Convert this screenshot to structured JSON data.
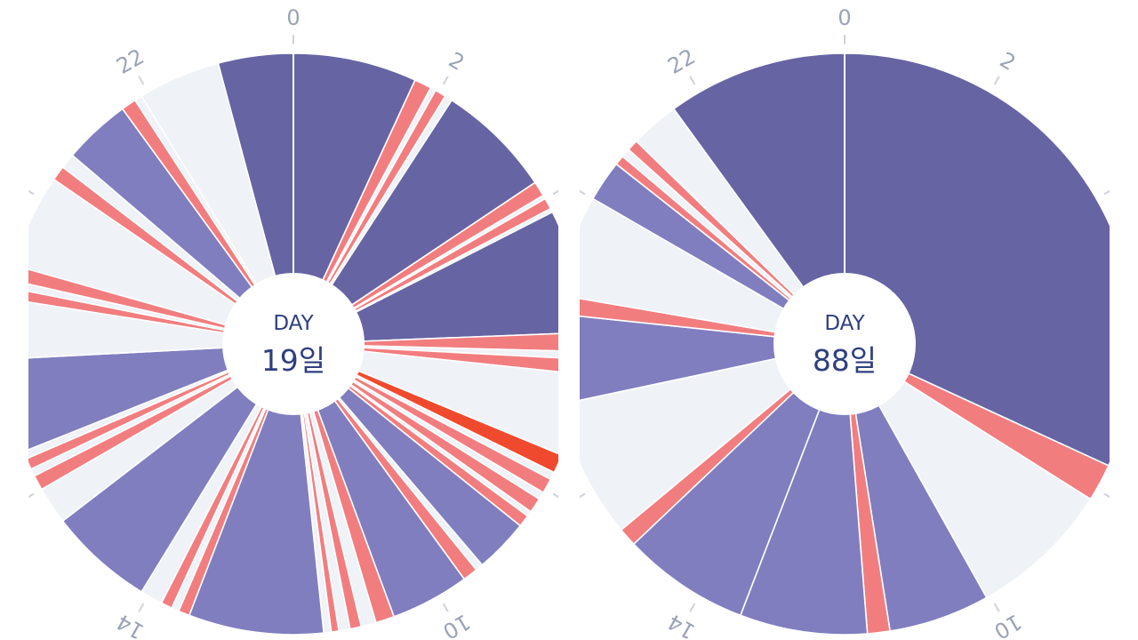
{
  "colors": {
    "sleep": "#6764a4",
    "nap": "#807ebf",
    "feed": "#f27d7f",
    "alert": "#f04a2e",
    "awake": "#eff2f6",
    "divider": "#ffffff",
    "tick": "#cdd2dc",
    "tick_label": "#9aa3b6",
    "center_text": "#2f3f7f"
  },
  "chart_data": [
    {
      "type": "radial-timeline",
      "center": {
        "title": "DAY",
        "value": "19일"
      },
      "hour_ticks": [
        "0",
        "2",
        "",
        "",
        "",
        "10",
        "",
        "14",
        "",
        "",
        "",
        "22"
      ],
      "segments": [
        {
          "start": 0.0,
          "end": 1.65,
          "category": "sleep"
        },
        {
          "start": 1.65,
          "end": 1.88,
          "category": "feed"
        },
        {
          "start": 1.88,
          "end": 1.95,
          "category": "awake"
        },
        {
          "start": 1.95,
          "end": 2.1,
          "category": "feed"
        },
        {
          "start": 2.1,
          "end": 2.2,
          "category": "awake"
        },
        {
          "start": 2.2,
          "end": 3.75,
          "category": "sleep"
        },
        {
          "start": 3.75,
          "end": 3.95,
          "category": "feed"
        },
        {
          "start": 3.95,
          "end": 4.0,
          "category": "awake"
        },
        {
          "start": 4.0,
          "end": 4.15,
          "category": "feed"
        },
        {
          "start": 4.15,
          "end": 4.2,
          "category": "awake"
        },
        {
          "start": 4.2,
          "end": 5.85,
          "category": "sleep"
        },
        {
          "start": 5.85,
          "end": 6.1,
          "category": "feed"
        },
        {
          "start": 6.1,
          "end": 6.2,
          "category": "awake"
        },
        {
          "start": 6.2,
          "end": 6.4,
          "category": "feed"
        },
        {
          "start": 6.4,
          "end": 7.5,
          "category": "awake"
        },
        {
          "start": 7.5,
          "end": 7.75,
          "category": "alert"
        },
        {
          "start": 7.75,
          "end": 7.85,
          "category": "awake"
        },
        {
          "start": 7.85,
          "end": 8.05,
          "category": "feed"
        },
        {
          "start": 8.05,
          "end": 8.15,
          "category": "awake"
        },
        {
          "start": 8.15,
          "end": 8.35,
          "category": "feed"
        },
        {
          "start": 8.35,
          "end": 8.42,
          "category": "awake"
        },
        {
          "start": 8.42,
          "end": 8.58,
          "category": "feed"
        },
        {
          "start": 8.58,
          "end": 9.3,
          "category": "nap"
        },
        {
          "start": 9.3,
          "end": 9.4,
          "category": "awake"
        },
        {
          "start": 9.4,
          "end": 9.6,
          "category": "feed"
        },
        {
          "start": 9.6,
          "end": 10.65,
          "category": "nap"
        },
        {
          "start": 10.65,
          "end": 10.9,
          "category": "feed"
        },
        {
          "start": 10.9,
          "end": 11.1,
          "category": "awake"
        },
        {
          "start": 11.1,
          "end": 11.25,
          "category": "feed"
        },
        {
          "start": 11.25,
          "end": 11.4,
          "category": "awake"
        },
        {
          "start": 11.4,
          "end": 11.5,
          "category": "feed"
        },
        {
          "start": 11.5,
          "end": 11.6,
          "category": "awake"
        },
        {
          "start": 11.6,
          "end": 13.4,
          "category": "nap"
        },
        {
          "start": 13.4,
          "end": 13.55,
          "category": "feed"
        },
        {
          "start": 13.55,
          "end": 13.65,
          "category": "awake"
        },
        {
          "start": 13.65,
          "end": 13.8,
          "category": "feed"
        },
        {
          "start": 13.8,
          "end": 14.1,
          "category": "awake"
        },
        {
          "start": 14.1,
          "end": 15.5,
          "category": "nap"
        },
        {
          "start": 15.5,
          "end": 16.0,
          "category": "awake"
        },
        {
          "start": 16.0,
          "end": 16.2,
          "category": "feed"
        },
        {
          "start": 16.2,
          "end": 16.3,
          "category": "awake"
        },
        {
          "start": 16.3,
          "end": 16.45,
          "category": "feed"
        },
        {
          "start": 16.45,
          "end": 16.55,
          "category": "awake"
        },
        {
          "start": 16.55,
          "end": 17.8,
          "category": "nap"
        },
        {
          "start": 17.8,
          "end": 18.6,
          "category": "awake"
        },
        {
          "start": 18.6,
          "end": 18.75,
          "category": "feed"
        },
        {
          "start": 18.75,
          "end": 18.85,
          "category": "awake"
        },
        {
          "start": 18.85,
          "end": 19.05,
          "category": "feed"
        },
        {
          "start": 19.05,
          "end": 20.3,
          "category": "awake"
        },
        {
          "start": 20.3,
          "end": 20.5,
          "category": "feed"
        },
        {
          "start": 20.5,
          "end": 20.7,
          "category": "awake"
        },
        {
          "start": 20.7,
          "end": 21.6,
          "category": "nap"
        },
        {
          "start": 21.6,
          "end": 21.8,
          "category": "feed"
        },
        {
          "start": 21.8,
          "end": 21.9,
          "category": "awake"
        },
        {
          "start": 21.9,
          "end": 23.0,
          "category": "awake"
        },
        {
          "start": 23.0,
          "end": 24.0,
          "category": "sleep"
        }
      ]
    },
    {
      "type": "radial-timeline",
      "center": {
        "title": "DAY",
        "value": "88일"
      },
      "hour_ticks": [
        "0",
        "2",
        "",
        "",
        "",
        "10",
        "",
        "14",
        "",
        "",
        "",
        "22"
      ],
      "segments": [
        {
          "start": 0.0,
          "end": 7.65,
          "category": "sleep"
        },
        {
          "start": 7.65,
          "end": 8.15,
          "category": "feed"
        },
        {
          "start": 8.15,
          "end": 10.05,
          "category": "awake"
        },
        {
          "start": 10.05,
          "end": 11.4,
          "category": "nap"
        },
        {
          "start": 11.4,
          "end": 11.7,
          "category": "feed"
        },
        {
          "start": 11.7,
          "end": 13.4,
          "category": "nap"
        },
        {
          "start": 13.4,
          "end": 15.1,
          "category": "nap"
        },
        {
          "start": 15.1,
          "end": 15.35,
          "category": "feed"
        },
        {
          "start": 15.35,
          "end": 17.2,
          "category": "awake"
        },
        {
          "start": 17.2,
          "end": 18.4,
          "category": "nap"
        },
        {
          "start": 18.4,
          "end": 18.65,
          "category": "feed"
        },
        {
          "start": 18.65,
          "end": 20.0,
          "category": "awake"
        },
        {
          "start": 20.0,
          "end": 20.55,
          "category": "nap"
        },
        {
          "start": 20.55,
          "end": 20.68,
          "category": "feed"
        },
        {
          "start": 20.68,
          "end": 20.8,
          "category": "awake"
        },
        {
          "start": 20.8,
          "end": 20.95,
          "category": "feed"
        },
        {
          "start": 20.95,
          "end": 21.6,
          "category": "awake"
        },
        {
          "start": 21.6,
          "end": 24.0,
          "category": "sleep"
        }
      ]
    }
  ]
}
